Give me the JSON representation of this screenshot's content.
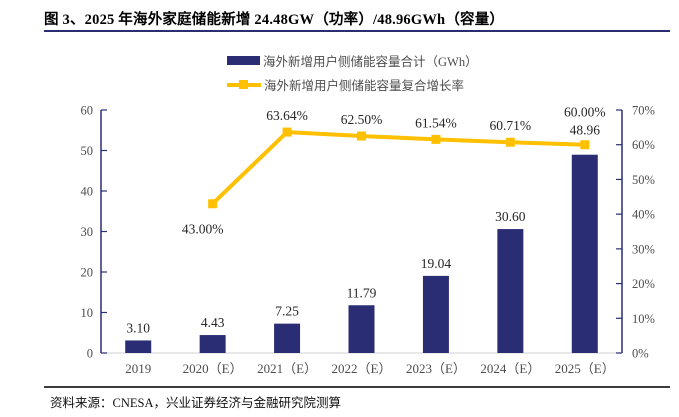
{
  "title": "图 3、2025 年海外家庭储能新增 24.48GW（功率）/48.96GWh（容量）",
  "source": "资料来源：CNESA，兴业证券经济与金融研究院测算",
  "colors": {
    "bar": "#2B2D74",
    "line": "#FFC000",
    "axis": "#2B2D74",
    "x_axis": "#D9D9D9",
    "tick_text": "#4D4D4D",
    "data_label": "#262626",
    "title_rule": "#2B2D74",
    "source_rule": "#3C3C3C"
  },
  "chart_data": {
    "type": "bar+line combo",
    "title": "图 3、2025 年海外家庭储能新增 24.48GW（功率）/48.96GWh（容量）",
    "categories": [
      "2019",
      "2020（E）",
      "2021（E）",
      "2022（E）",
      "2023（E）",
      "2024（E）",
      "2025（E）"
    ],
    "series": [
      {
        "name": "海外新增用户侧储能容量合计（GWh）",
        "type": "bar",
        "axis": "left",
        "values": [
          3.1,
          4.43,
          7.25,
          11.79,
          19.04,
          30.6,
          48.96
        ],
        "labels": [
          "3.10",
          "4.43",
          "7.25",
          "11.79",
          "19.04",
          "30.60",
          "48.96"
        ]
      },
      {
        "name": "海外新增用户侧储能容量复合增长率",
        "type": "line",
        "axis": "right",
        "values": [
          null,
          43.0,
          63.64,
          62.5,
          61.54,
          60.71,
          60.0
        ],
        "labels": [
          null,
          "43.00%",
          "63.64%",
          "62.50%",
          "61.54%",
          "60.71%",
          "60.00%"
        ]
      }
    ],
    "left_axis": {
      "min": 0,
      "max": 60,
      "step": 10,
      "tick_labels": [
        "0",
        "10",
        "20",
        "30",
        "40",
        "50",
        "60"
      ]
    },
    "right_axis": {
      "min": 0,
      "max": 70,
      "step": 10,
      "tick_labels": [
        "0%",
        "10%",
        "20%",
        "30%",
        "40%",
        "50%",
        "60%",
        "70%"
      ]
    },
    "legend_position": "top",
    "grid": false
  }
}
